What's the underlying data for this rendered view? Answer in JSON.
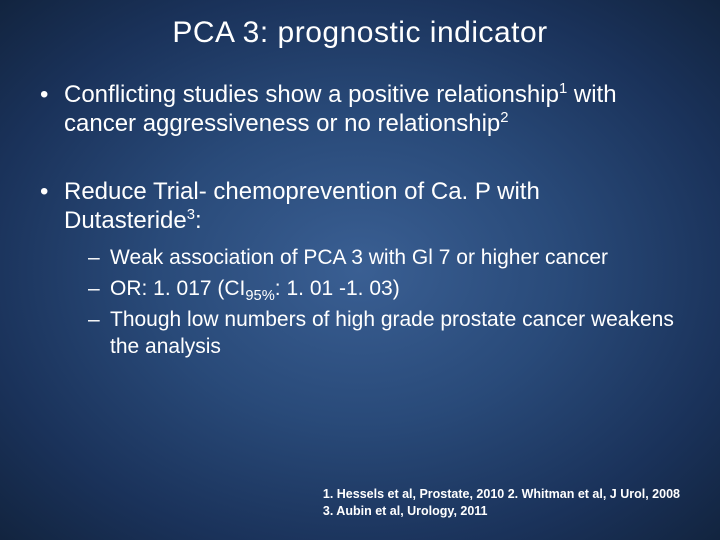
{
  "background": {
    "gradient_center": "#3a5f93",
    "gradient_mid": "#294a79",
    "gradient_outer": "#1a325a",
    "gradient_edge": "#12243f"
  },
  "text_color": "#ffffff",
  "title": {
    "text": "PCA 3:  prognostic indicator",
    "fontsize": 30
  },
  "bullets": [
    {
      "segments": [
        {
          "t": "Conflicting studies show a positive relationship"
        },
        {
          "t": "1",
          "sup": true
        },
        {
          "t": " with cancer aggressiveness or no relationship"
        },
        {
          "t": "2",
          "sup": true
        }
      ],
      "sub": []
    },
    {
      "segments": [
        {
          "t": "Reduce Trial- chemoprevention of Ca. P with Dutasteride"
        },
        {
          "t": "3",
          "sup": true
        },
        {
          "t": ":"
        }
      ],
      "sub": [
        {
          "segments": [
            {
              "t": "Weak association of PCA 3 with Gl 7 or higher cancer"
            }
          ]
        },
        {
          "segments": [
            {
              "t": "OR: 1. 017 (CI"
            },
            {
              "t": "95%",
              "sub": true
            },
            {
              "t": ": 1. 01 -1. 03)"
            }
          ]
        },
        {
          "segments": [
            {
              "t": "Though low numbers of high grade prostate cancer weakens the analysis"
            }
          ]
        }
      ]
    }
  ],
  "references": {
    "line1": "1. Hessels et al, Prostate, 2010  2. Whitman et al, J Urol, 2008",
    "line2": "3. Aubin et al, Urology, 2011",
    "fontsize": 12.5
  }
}
